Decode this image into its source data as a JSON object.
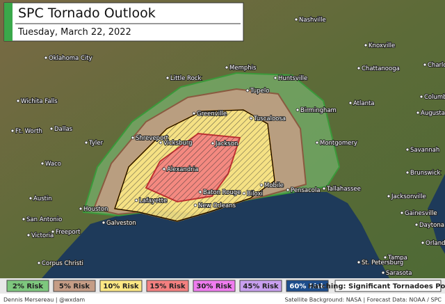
{
  "header": {
    "title": "SPC Tornado Outlook",
    "date": "Tuesday, March 22, 2022"
  },
  "cities": [
    "Nashville",
    "Knoxville",
    "Oklahoma City",
    "Memphis",
    "Chattanooga",
    "Charlotte",
    "Little Rock",
    "Huntsville",
    "Tupelo",
    "Wichita Falls",
    "Atlanta",
    "Columbia",
    "Birmingham",
    "Greenville",
    "Augusta",
    "Ft. Worth",
    "Dallas",
    "Tuscaloosa",
    "Tyler",
    "Shreveport",
    "Vicksburg",
    "Jackson",
    "Montgomery",
    "Savannah",
    "Waco",
    "Alexandria",
    "Brunswick",
    "Austin",
    "Mobile",
    "Biloxi",
    "Baton Rouge",
    "Pensacola",
    "Tallahassee",
    "Jacksonville",
    "Lafayette",
    "New Orleans",
    "Houston",
    "Gainesville",
    "Galveston",
    "San Antonio",
    "Daytona Beach",
    "Victoria",
    "Freeport",
    "Orlando",
    "Corpus Christi",
    "Tampa",
    "St. Petersburg",
    "Sarasota"
  ],
  "legend": {
    "items": [
      {
        "label": "2% Risk",
        "color": "#7ec87e"
      },
      {
        "label": "5% Risk",
        "color": "#c59d86"
      },
      {
        "label": "10% Risk",
        "color": "#fce884"
      },
      {
        "label": "15% Risk",
        "color": "#f48080"
      },
      {
        "label": "30% Risk",
        "color": "#f07cf0"
      },
      {
        "label": "45% Risk",
        "color": "#c9a0f0"
      },
      {
        "label": "60% Risk",
        "color": "#1d4d8c"
      }
    ],
    "hatching": "Hatching: Significant Tornadoes Possible"
  },
  "footer": {
    "author": "Dennis Mersereau | @wxdam",
    "source": "Satellite Background: NASA | Forecast Data: NOAA / SPC"
  }
}
